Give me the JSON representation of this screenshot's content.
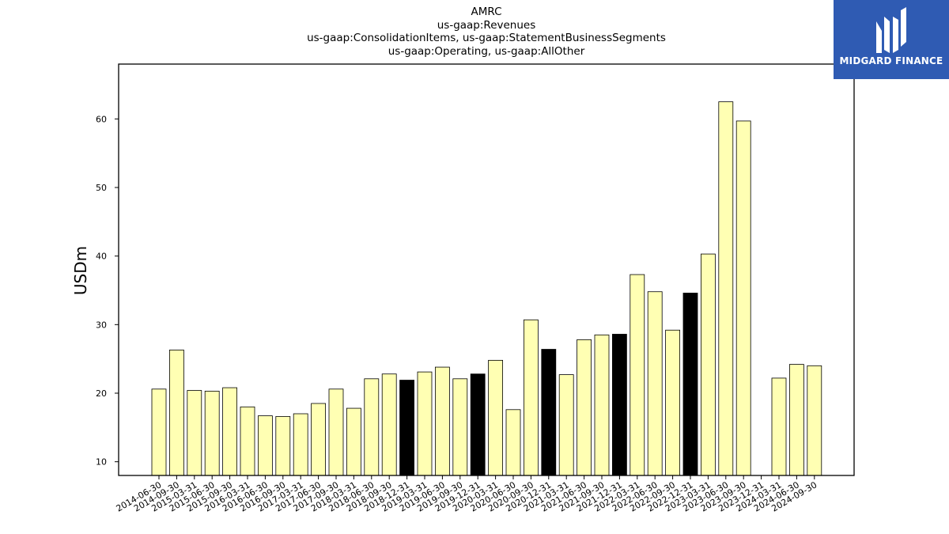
{
  "header": {
    "title_lines": [
      "AMRC",
      "us-gaap:Revenues",
      "us-gaap:ConsolidationItems, us-gaap:StatementBusinessSegments",
      "us-gaap:Operating, us-gaap:AllOther"
    ]
  },
  "logo": {
    "text": "MIDGARD FINANCE",
    "background": "#2f5bb3",
    "icon": "midgard-logo-icon"
  },
  "chart_data": {
    "type": "bar",
    "ylabel": "USDm",
    "xlabel": "",
    "ylim": [
      8,
      68
    ],
    "yticks": [
      10,
      20,
      30,
      40,
      50,
      60
    ],
    "grid": false,
    "colors": {
      "default_bar": "#ffffb3",
      "highlight_bar": "#000000",
      "edge": "#000000"
    },
    "categories": [
      "2014-06-30",
      "2014-09-30",
      "2015-03-31",
      "2015-06-30",
      "2015-09-30",
      "2016-03-31",
      "2016-06-30",
      "2016-09-30",
      "2017-03-31",
      "2017-06-30",
      "2017-09-30",
      "2018-03-31",
      "2018-06-30",
      "2018-09-30",
      "2018-12-31",
      "2019-03-31",
      "2019-06-30",
      "2019-09-30",
      "2019-12-31",
      "2020-03-31",
      "2020-06-30",
      "2020-09-30",
      "2020-12-31",
      "2021-03-31",
      "2021-06-30",
      "2021-09-30",
      "2021-12-31",
      "2022-03-31",
      "2022-06-30",
      "2022-09-30",
      "2022-12-31",
      "2023-03-31",
      "2023-06-30",
      "2023-09-30",
      "2023-12-31",
      "2024-03-31",
      "2024-06-30",
      "2024-09-30"
    ],
    "values": [
      20.6,
      26.3,
      20.4,
      20.3,
      20.8,
      18.0,
      16.7,
      16.6,
      17.0,
      18.5,
      20.6,
      17.8,
      22.1,
      22.8,
      21.9,
      23.1,
      23.8,
      22.1,
      22.8,
      24.8,
      17.6,
      30.7,
      26.4,
      22.7,
      27.8,
      28.5,
      28.6,
      37.3,
      34.8,
      29.2,
      34.6,
      40.3,
      62.5,
      59.7,
      null,
      22.2,
      24.2,
      24.0
    ],
    "highlighted": [
      "2018-12-31",
      "2019-12-31",
      "2020-12-31",
      "2021-12-31",
      "2022-12-31"
    ]
  }
}
